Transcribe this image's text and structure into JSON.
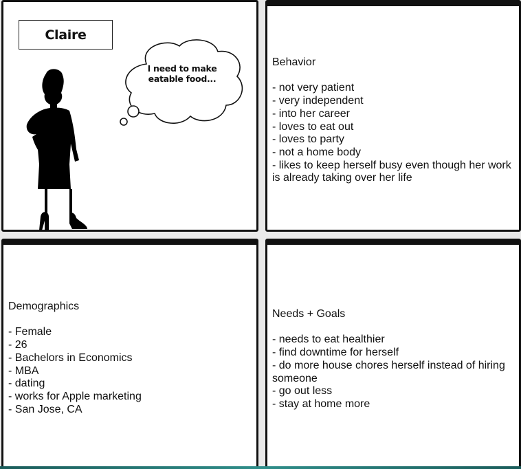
{
  "character": {
    "name": "Claire",
    "thought_lines": [
      "I need to make",
      "eatable food..."
    ]
  },
  "behavior": {
    "heading": "Behavior",
    "items": [
      "- not very patient",
      "- very independent",
      "- into her career",
      "- loves to eat out",
      "- loves to party",
      "- not a home body",
      "- likes to keep herself busy even though her work is already taking over her life"
    ]
  },
  "demographics": {
    "heading": "Demographics",
    "items": [
      "- Female",
      "- 26",
      "- Bachelors in Economics",
      "- MBA",
      "- dating",
      "- works for Apple marketing",
      "- San Jose, CA"
    ]
  },
  "needs_goals": {
    "heading": "Needs + Goals",
    "items": [
      "- needs to eat healthier",
      "- find downtime for herself",
      "- do more house chores herself instead of hiring someone",
      "- go out less",
      "- stay at home more"
    ]
  }
}
